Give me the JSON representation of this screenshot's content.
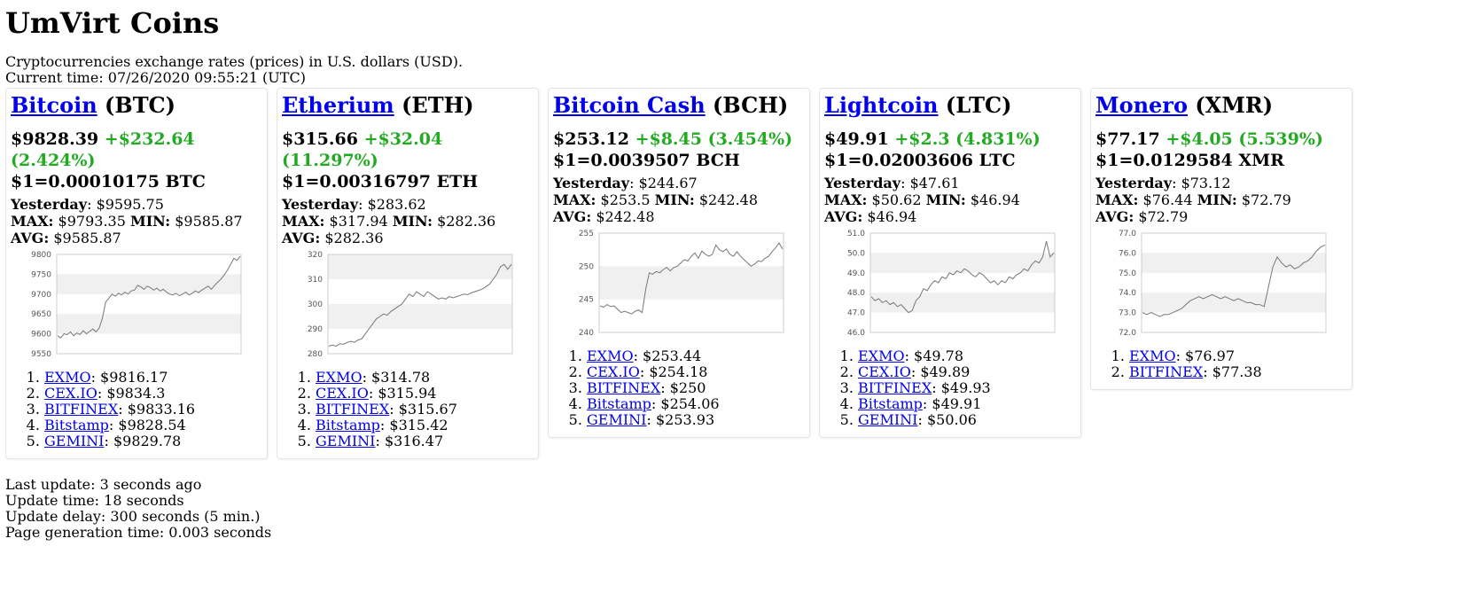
{
  "title": "UmVirt Coins",
  "intro": {
    "description": "Cryptocurrencies exchange rates (prices) in U.S. dollars (USD).",
    "current_time": "Current time: 07/26/2020 09:55:21 (UTC)"
  },
  "labels": {
    "yesterday": "Yesterday",
    "max": "MAX:",
    "min": "MIN:",
    "avg": "AVG:"
  },
  "coins": [
    {
      "name": "Bitcoin",
      "symbol": "(BTC)",
      "price": "$9828.39",
      "change": "+$232.64 (2.424%)",
      "rate": "$1=0.00010175 BTC",
      "yesterday": "$9595.75",
      "max": "$9793.35",
      "min": "$9585.87",
      "avg": "$9585.87",
      "exchanges": [
        {
          "name": "EXMO",
          "price": ": $9816.17"
        },
        {
          "name": "CEX.IO",
          "price": ": $9834.3"
        },
        {
          "name": "BITFINEX",
          "price": ": $9833.16"
        },
        {
          "name": "Bitstamp",
          "price": ": $9828.54"
        },
        {
          "name": "GEMINI",
          "price": ": $9829.78"
        }
      ],
      "chart_data": {
        "type": "line",
        "ylim": [
          9550,
          9800
        ],
        "yticks": [
          "9550",
          "9600",
          "9650",
          "9700",
          "9750",
          "9800"
        ],
        "values": [
          9595,
          9590,
          9600,
          9598,
          9605,
          9595,
          9602,
          9598,
          9608,
          9600,
          9606,
          9612,
          9605,
          9615,
          9640,
          9680,
          9690,
          9700,
          9695,
          9702,
          9698,
          9705,
          9700,
          9708,
          9710,
          9722,
          9718,
          9712,
          9720,
          9716,
          9710,
          9715,
          9708,
          9712,
          9705,
          9700,
          9698,
          9702,
          9696,
          9700,
          9705,
          9698,
          9702,
          9708,
          9704,
          9710,
          9715,
          9720,
          9712,
          9722,
          9730,
          9738,
          9748,
          9760,
          9775,
          9790,
          9785,
          9795
        ]
      }
    },
    {
      "name": "Etherium",
      "symbol": "(ETH)",
      "price": "$315.66",
      "change": "+$32.04 (11.297%)",
      "rate": "$1=0.00316797 ETH",
      "yesterday": "$283.62",
      "max": "$317.94",
      "min": "$282.36",
      "avg": "$282.36",
      "exchanges": [
        {
          "name": "EXMO",
          "price": ": $314.78"
        },
        {
          "name": "CEX.IO",
          "price": ": $315.94"
        },
        {
          "name": "BITFINEX",
          "price": ": $315.67"
        },
        {
          "name": "Bitstamp",
          "price": ": $315.42"
        },
        {
          "name": "GEMINI",
          "price": ": $316.47"
        }
      ],
      "chart_data": {
        "type": "line",
        "ylim": [
          280,
          320
        ],
        "yticks": [
          "280",
          "290",
          "300",
          "310",
          "320"
        ],
        "values": [
          283,
          283.5,
          283,
          284,
          283.8,
          284.5,
          285,
          284.6,
          285.5,
          286,
          288,
          290,
          292,
          294,
          295,
          296,
          295.5,
          297,
          298,
          299,
          300,
          302,
          304,
          303,
          305,
          304,
          303,
          305,
          304,
          303,
          302,
          302.5,
          302,
          303,
          302.5,
          303,
          303.5,
          304,
          303.8,
          304.5,
          305,
          305.5,
          306,
          307,
          308,
          310,
          312,
          315,
          316,
          314,
          316
        ]
      }
    },
    {
      "name": "Bitcoin Cash",
      "symbol": "(BCH)",
      "price": "$253.12",
      "change": "+$8.45 (3.454%)",
      "rate": "$1=0.0039507 BCH",
      "yesterday": "$244.67",
      "max": "$253.5",
      "min": "$242.48",
      "avg": "$242.48",
      "exchanges": [
        {
          "name": "EXMO",
          "price": ": $253.44"
        },
        {
          "name": "CEX.IO",
          "price": ": $254.18"
        },
        {
          "name": "BITFINEX",
          "price": ": $250"
        },
        {
          "name": "Bitstamp",
          "price": ": $254.06"
        },
        {
          "name": "GEMINI",
          "price": ": $253.93"
        }
      ],
      "chart_data": {
        "type": "line",
        "ylim": [
          240,
          255
        ],
        "yticks": [
          "240",
          "245",
          "250",
          "255"
        ],
        "values": [
          244,
          243.8,
          244.2,
          243.9,
          244,
          243.5,
          243,
          243.2,
          243,
          242.8,
          243.2,
          243.4,
          243,
          246.5,
          249,
          248.8,
          249.2,
          249,
          249.5,
          249.8,
          249.3,
          249.8,
          250,
          250.5,
          251,
          250.8,
          251.5,
          252,
          251.2,
          252.3,
          251.8,
          251.5,
          251.8,
          253.2,
          252.5,
          252.2,
          252.6,
          251.8,
          251.5,
          252.2,
          251.5,
          251,
          250.5,
          250,
          250.3,
          250.8,
          250.7,
          251.2,
          251.5,
          252.2,
          252.8,
          253.5,
          252.6
        ]
      }
    },
    {
      "name": "Lightcoin",
      "symbol": "(LTC)",
      "price": "$49.91",
      "change": "+$2.3 (4.831%)",
      "rate": "$1=0.02003606 LTC",
      "yesterday": "$47.61",
      "max": "$50.62",
      "min": "$46.94",
      "avg": "$46.94",
      "exchanges": [
        {
          "name": "EXMO",
          "price": ": $49.78"
        },
        {
          "name": "CEX.IO",
          "price": ": $49.89"
        },
        {
          "name": "BITFINEX",
          "price": ": $49.93"
        },
        {
          "name": "Bitstamp",
          "price": ": $49.91"
        },
        {
          "name": "GEMINI",
          "price": ": $50.06"
        }
      ],
      "chart_data": {
        "type": "line",
        "ylim": [
          46.0,
          51.0
        ],
        "yticks": [
          "46.0",
          "47.0",
          "48.0",
          "49.0",
          "50.0",
          "51.0"
        ],
        "values": [
          47.8,
          47.6,
          47.7,
          47.5,
          47.6,
          47.4,
          47.5,
          47.3,
          47.4,
          47.2,
          47.0,
          47.1,
          47.6,
          47.8,
          48.2,
          48.1,
          48.4,
          48.6,
          48.5,
          48.8,
          48.7,
          49.0,
          48.9,
          49.1,
          49.0,
          49.2,
          49.1,
          48.9,
          48.8,
          49.0,
          48.9,
          48.7,
          48.5,
          48.6,
          48.4,
          48.6,
          48.5,
          48.8,
          48.7,
          48.9,
          49.0,
          49.2,
          49.1,
          49.4,
          49.6,
          49.5,
          49.8,
          50.6,
          49.8,
          50.0
        ]
      }
    },
    {
      "name": "Monero",
      "symbol": "(XMR)",
      "price": "$77.17",
      "change": "+$4.05 (5.539%)",
      "rate": "$1=0.0129584 XMR",
      "yesterday": "$73.12",
      "max": "$76.44",
      "min": "$72.79",
      "avg": "$72.79",
      "exchanges": [
        {
          "name": "EXMO",
          "price": ": $76.97"
        },
        {
          "name": "BITFINEX",
          "price": ": $77.38"
        }
      ],
      "chart_data": {
        "type": "line",
        "ylim": [
          72.0,
          77.0
        ],
        "yticks": [
          "72.0",
          "73.0",
          "74.0",
          "75.0",
          "76.0",
          "77.0"
        ],
        "values": [
          73.0,
          72.9,
          73.0,
          72.9,
          72.8,
          72.9,
          72.9,
          73.0,
          73.1,
          73.2,
          73.4,
          73.6,
          73.7,
          73.8,
          73.7,
          73.8,
          73.9,
          73.8,
          73.7,
          73.8,
          73.7,
          73.6,
          73.7,
          73.6,
          73.5,
          73.5,
          73.4,
          73.4,
          73.3,
          74.3,
          75.3,
          75.8,
          75.5,
          75.3,
          75.4,
          75.2,
          75.3,
          75.5,
          75.6,
          75.8,
          76.1,
          76.3,
          76.4
        ]
      }
    }
  ],
  "footer": {
    "last_update": "Last update: 3 seconds ago",
    "update_time": "Update time: 18 seconds",
    "update_delay": "Update delay: 300 seconds (5 min.)",
    "generation_time": "Page generation time: 0.003 seconds"
  }
}
